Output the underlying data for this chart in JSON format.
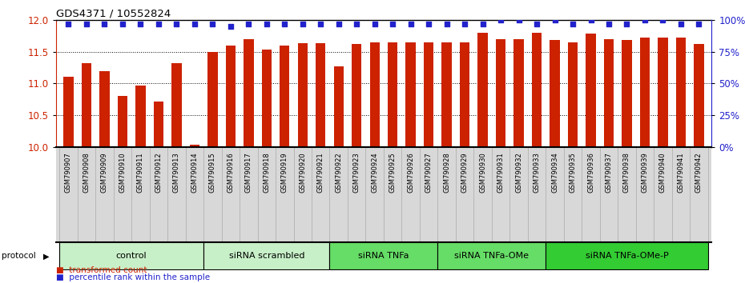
{
  "title": "GDS4371 / 10552824",
  "samples": [
    "GSM790907",
    "GSM790908",
    "GSM790909",
    "GSM790910",
    "GSM790911",
    "GSM790912",
    "GSM790913",
    "GSM790914",
    "GSM790915",
    "GSM790916",
    "GSM790917",
    "GSM790918",
    "GSM790919",
    "GSM790920",
    "GSM790921",
    "GSM790922",
    "GSM790923",
    "GSM790924",
    "GSM790925",
    "GSM790926",
    "GSM790927",
    "GSM790928",
    "GSM790929",
    "GSM790930",
    "GSM790931",
    "GSM790932",
    "GSM790933",
    "GSM790934",
    "GSM790935",
    "GSM790936",
    "GSM790937",
    "GSM790938",
    "GSM790939",
    "GSM790940",
    "GSM790941",
    "GSM790942"
  ],
  "red_values": [
    11.1,
    11.32,
    11.2,
    10.8,
    10.97,
    10.72,
    11.32,
    10.04,
    11.5,
    11.6,
    11.7,
    11.53,
    11.6,
    11.63,
    11.63,
    11.27,
    11.62,
    11.65,
    11.65,
    11.65,
    11.65,
    11.65,
    11.65,
    11.8,
    11.7,
    11.7,
    11.8,
    11.68,
    11.65,
    11.78,
    11.7,
    11.68,
    11.72,
    11.72,
    11.72,
    11.62
  ],
  "blue_values": [
    97,
    97,
    97,
    97,
    97,
    97,
    97,
    97,
    97,
    95,
    97,
    97,
    97,
    97,
    97,
    97,
    97,
    97,
    97,
    97,
    97,
    97,
    97,
    97,
    100,
    100,
    97,
    100,
    97,
    100,
    97,
    97,
    100,
    100,
    97,
    97
  ],
  "groups": [
    {
      "label": "control",
      "start": 0,
      "end": 8,
      "color": "#c8f0c8"
    },
    {
      "label": "siRNA scrambled",
      "start": 8,
      "end": 15,
      "color": "#c8f0c8"
    },
    {
      "label": "siRNA TNFa",
      "start": 15,
      "end": 21,
      "color": "#66dd66"
    },
    {
      "label": "siRNA TNFa-OMe",
      "start": 21,
      "end": 27,
      "color": "#66dd66"
    },
    {
      "label": "siRNA TNFa-OMe-P",
      "start": 27,
      "end": 36,
      "color": "#33cc33"
    }
  ],
  "ylim_left": [
    10,
    12
  ],
  "ylim_right": [
    0,
    100
  ],
  "yticks_left": [
    10,
    10.5,
    11,
    11.5,
    12
  ],
  "yticks_right": [
    0,
    25,
    50,
    75,
    100
  ],
  "bar_color": "#cc2200",
  "dot_color": "#2222cc",
  "bg_color": "#ffffff"
}
